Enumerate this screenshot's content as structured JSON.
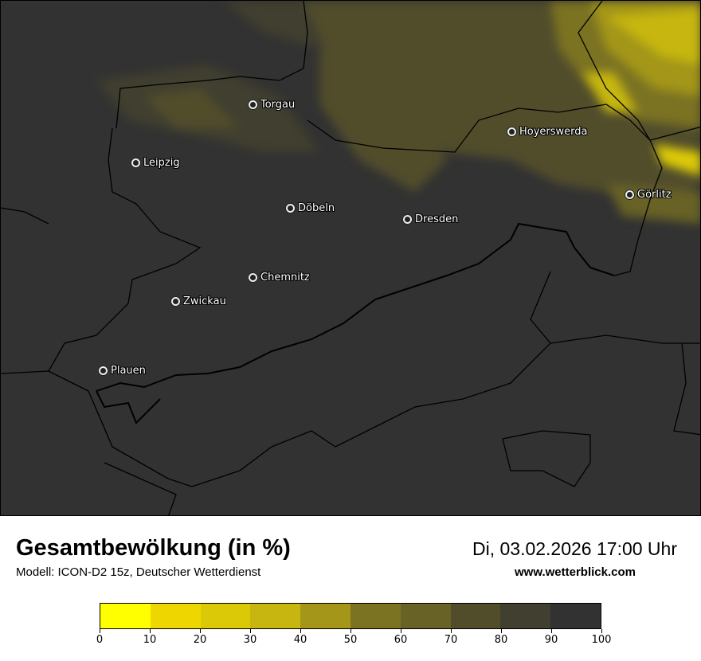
{
  "title": "Gesamtbewölkung (in %)",
  "model": "Modell: ICON-D2 15z, Deutscher Wetterdienst",
  "datetime": "Di, 03.02.2026 17:00 Uhr",
  "website": "www.wetterblick.com",
  "cities": [
    {
      "name": "Torgau"
    },
    {
      "name": "Hoyerswerda"
    },
    {
      "name": "Leipzig"
    },
    {
      "name": "Görlitz"
    },
    {
      "name": "Döbeln"
    },
    {
      "name": "Dresden"
    },
    {
      "name": "Chemnitz"
    },
    {
      "name": "Zwickau"
    },
    {
      "name": "Plauen"
    }
  ],
  "legend": {
    "ticks": [
      "0",
      "10",
      "20",
      "30",
      "40",
      "50",
      "60",
      "70",
      "80",
      "90",
      "100"
    ],
    "colors": [
      "#ffff00",
      "#eed700",
      "#dbc908",
      "#c6b60f",
      "#a39618",
      "#7b7222",
      "#686226",
      "#514d2b",
      "#413f2f",
      "#323232"
    ]
  }
}
